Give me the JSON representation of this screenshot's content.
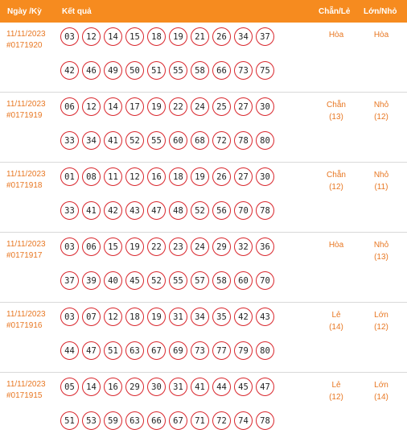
{
  "header": {
    "date": "Ngày /Kỳ",
    "result": "Kết quả",
    "chan_le": "Chẵn/Lẻ",
    "lon_nho": "Lớn/Nhỏ"
  },
  "rows": [
    {
      "date": "11/11/2023",
      "id": "#0171920",
      "nums": [
        "03",
        "12",
        "14",
        "15",
        "18",
        "19",
        "21",
        "26",
        "34",
        "37",
        "42",
        "46",
        "49",
        "50",
        "51",
        "55",
        "58",
        "66",
        "73",
        "75"
      ],
      "cl": "Hòa",
      "cl_count": "",
      "ln": "Hòa",
      "ln_count": ""
    },
    {
      "date": "11/11/2023",
      "id": "#0171919",
      "nums": [
        "06",
        "12",
        "14",
        "17",
        "19",
        "22",
        "24",
        "25",
        "27",
        "30",
        "33",
        "34",
        "41",
        "52",
        "55",
        "60",
        "68",
        "72",
        "78",
        "80"
      ],
      "cl": "Chẵn",
      "cl_count": "(13)",
      "ln": "Nhỏ",
      "ln_count": "(12)"
    },
    {
      "date": "11/11/2023",
      "id": "#0171918",
      "nums": [
        "01",
        "08",
        "11",
        "12",
        "16",
        "18",
        "19",
        "26",
        "27",
        "30",
        "33",
        "41",
        "42",
        "43",
        "47",
        "48",
        "52",
        "56",
        "70",
        "78"
      ],
      "cl": "Chẵn",
      "cl_count": "(12)",
      "ln": "Nhỏ",
      "ln_count": "(11)"
    },
    {
      "date": "11/11/2023",
      "id": "#0171917",
      "nums": [
        "03",
        "06",
        "15",
        "19",
        "22",
        "23",
        "24",
        "29",
        "32",
        "36",
        "37",
        "39",
        "40",
        "45",
        "52",
        "55",
        "57",
        "58",
        "60",
        "70"
      ],
      "cl": "Hòa",
      "cl_count": "",
      "ln": "Nhỏ",
      "ln_count": "(13)"
    },
    {
      "date": "11/11/2023",
      "id": "#0171916",
      "nums": [
        "03",
        "07",
        "12",
        "18",
        "19",
        "31",
        "34",
        "35",
        "42",
        "43",
        "44",
        "47",
        "51",
        "63",
        "67",
        "69",
        "73",
        "77",
        "79",
        "80"
      ],
      "cl": "Lẻ",
      "cl_count": "(14)",
      "ln": "Lớn",
      "ln_count": "(12)"
    },
    {
      "date": "11/11/2023",
      "id": "#0171915",
      "nums": [
        "05",
        "14",
        "16",
        "29",
        "30",
        "31",
        "41",
        "44",
        "45",
        "47",
        "51",
        "53",
        "59",
        "63",
        "66",
        "67",
        "71",
        "72",
        "74",
        "78"
      ],
      "cl": "Lẻ",
      "cl_count": "(12)",
      "ln": "Lớn",
      "ln_count": "(14)"
    }
  ],
  "colors": {
    "header_bg": "#f68b1f",
    "accent_text": "#e87722",
    "ball_border": "#d9262c"
  }
}
